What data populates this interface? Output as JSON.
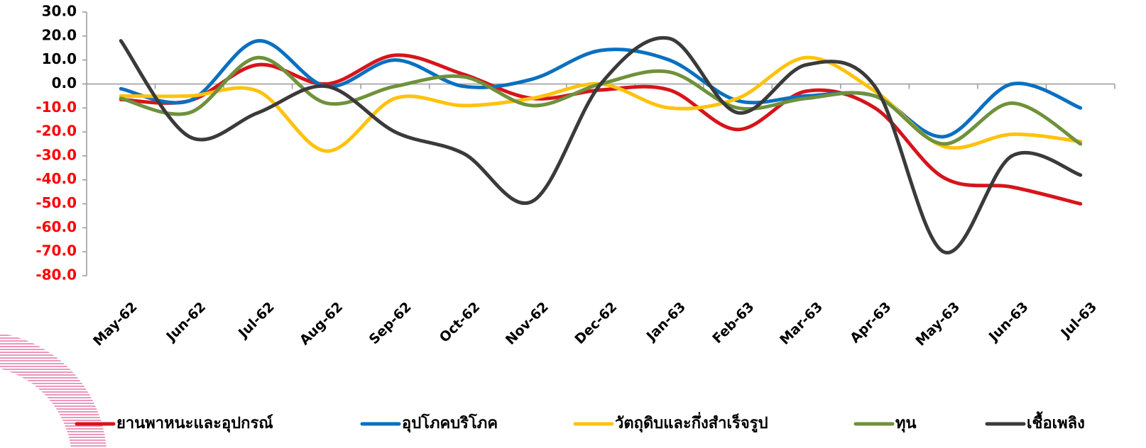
{
  "chart_data": {
    "type": "line",
    "categories": [
      "May-62",
      "Jun-62",
      "Jul-62",
      "Aug-62",
      "Sep-62",
      "Oct-62",
      "Nov-62",
      "Dec-62",
      "Jan-63",
      "Feb-63",
      "Mar-63",
      "Apr-63",
      "May-63",
      "Jun-63",
      "Jul-63"
    ],
    "series": [
      {
        "name": "ยานพาหนะและอุปกรณ์",
        "color": "#d7141b",
        "values": [
          -6.5,
          -7,
          8,
          0,
          12,
          4,
          -6,
          -2.5,
          -2.5,
          -19,
          -3,
          -10,
          -39,
          -43,
          -50
        ]
      },
      {
        "name": "อุปโภคบริโภค",
        "color": "#0a70c0",
        "values": [
          -2,
          -7,
          18,
          -1,
          10,
          -1,
          2,
          14,
          10,
          -7,
          -5,
          -5,
          -22,
          0,
          -10
        ]
      },
      {
        "name": "วัตถุดิบและกึ่งสำเร็จรูป",
        "color": "#ffc20e",
        "values": [
          -5,
          -5,
          -3,
          -28,
          -6,
          -9,
          -6,
          0,
          -10,
          -6,
          11,
          -3,
          -26,
          -21,
          -24
        ]
      },
      {
        "name": "ทุน",
        "color": "#6f913c",
        "values": [
          -6,
          -12,
          11,
          -8,
          -1,
          3,
          -9,
          0,
          5,
          -10,
          -6,
          -5,
          -25,
          -8,
          -25
        ]
      },
      {
        "name": "เชื้อเพลิง",
        "color": "#3a3a3a",
        "values": [
          18,
          -22,
          -12,
          -1,
          -20,
          -29,
          -49,
          0,
          19,
          -12,
          8,
          -1,
          -70,
          -30,
          -38
        ]
      }
    ],
    "ylim": [
      -80,
      30
    ],
    "yticks": [
      {
        "value": 30,
        "label": "30.0"
      },
      {
        "value": 20,
        "label": "20.0"
      },
      {
        "value": 10,
        "label": "10.0"
      },
      {
        "value": 0,
        "label": "0.0"
      },
      {
        "value": -10,
        "label": "-10.0"
      },
      {
        "value": -20,
        "label": "-20.0"
      },
      {
        "value": -30,
        "label": "-30.0"
      },
      {
        "value": -40,
        "label": "-40.0"
      },
      {
        "value": -50,
        "label": "-50.0"
      },
      {
        "value": -60,
        "label": "-60.0"
      },
      {
        "value": -70,
        "label": "-70.0"
      },
      {
        "value": -80,
        "label": "-80.0"
      }
    ],
    "grid": false,
    "legend": "bottom"
  }
}
